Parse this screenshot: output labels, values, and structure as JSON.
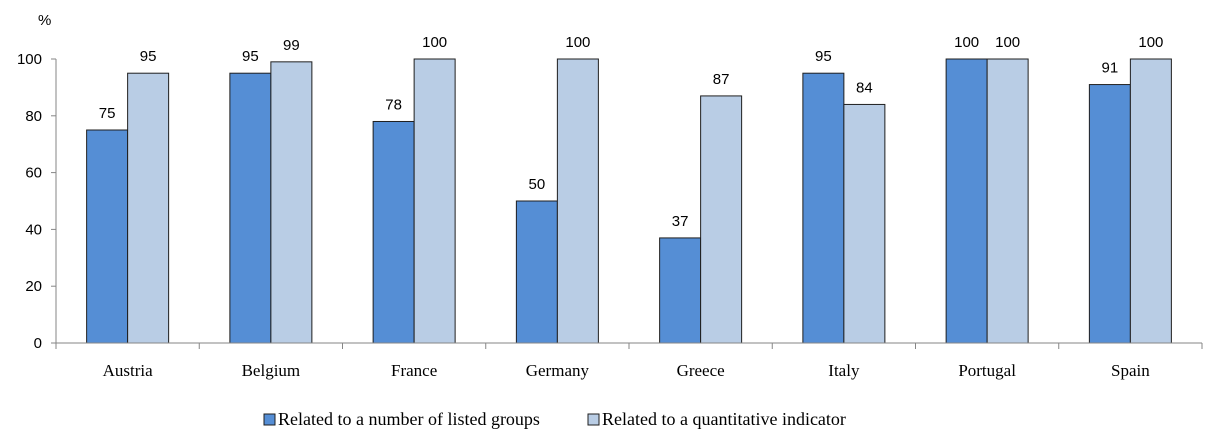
{
  "chart_data": {
    "type": "bar",
    "ylabel": "%",
    "ylim": [
      0,
      100
    ],
    "yticks": [
      0,
      20,
      40,
      60,
      80,
      100
    ],
    "categories": [
      "Austria",
      "Belgium",
      "France",
      "Germany",
      "Greece",
      "Italy",
      "Portugal",
      "Spain"
    ],
    "series": [
      {
        "name": "Related to a number of listed groups",
        "color": "#558ed5",
        "values": [
          75,
          95,
          78,
          50,
          37,
          95,
          100,
          91
        ]
      },
      {
        "name": "Related to a quantitative indicator",
        "color": "#b9cde5",
        "values": [
          95,
          99,
          100,
          100,
          87,
          84,
          100,
          100
        ]
      }
    ],
    "grid": false,
    "data_labels": true,
    "legend_position": "bottom"
  }
}
